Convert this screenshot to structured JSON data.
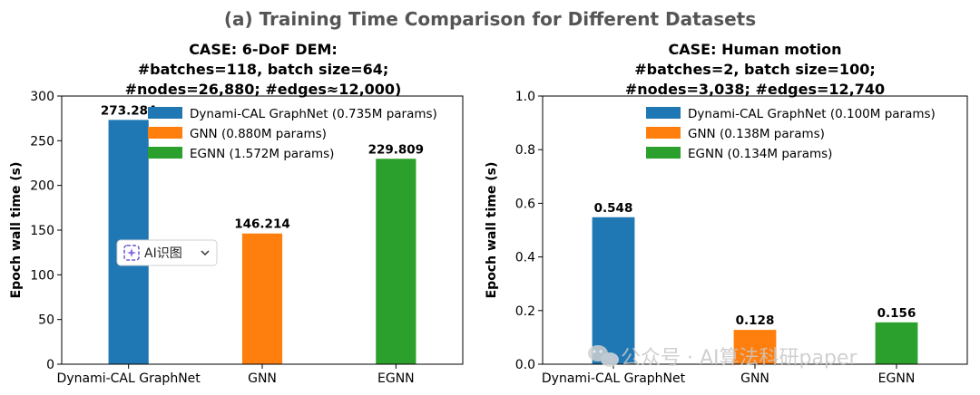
{
  "figure": {
    "title": "(a) Training Time Comparison for Different Datasets"
  },
  "colors": {
    "blue": "#1f77b4",
    "orange": "#ff7f0e",
    "green": "#2ca02c"
  },
  "chart_data": [
    {
      "type": "bar",
      "title_lines": [
        "CASE: 6-DoF DEM:",
        "#batches=118, batch size=64;",
        "#nodes=26,880; #edges≈12,000)"
      ],
      "categories": [
        "Dynami-CAL GraphNet",
        "GNN",
        "EGNN"
      ],
      "values": [
        273.284,
        146.214,
        229.809
      ],
      "value_labels": [
        "273.284",
        "146.214",
        "229.809"
      ],
      "ylabel": "Epoch wall time (s)",
      "ylim": [
        0,
        300
      ],
      "yticks": [
        0,
        50,
        100,
        150,
        200,
        250,
        300
      ],
      "ytick_labels": [
        "0",
        "50",
        "100",
        "150",
        "200",
        "250",
        "300"
      ],
      "legend": [
        "Dynami-CAL GraphNet (0.735M params)",
        "GNN (0.880M params)",
        "EGNN (1.572M params)"
      ],
      "legend_position": "top-right",
      "grid": false
    },
    {
      "type": "bar",
      "title_lines": [
        "CASE: Human motion",
        "#batches=2, batch size=100;",
        "#nodes=3,038; #edges=12,740"
      ],
      "categories": [
        "Dynami-CAL GraphNet",
        "GNN",
        "EGNN"
      ],
      "values": [
        0.548,
        0.128,
        0.156
      ],
      "value_labels": [
        "0.548",
        "0.128",
        "0.156"
      ],
      "ylabel": "Epoch wall time (s)",
      "ylim": [
        0,
        1.0
      ],
      "yticks": [
        0,
        0.2,
        0.4,
        0.6,
        0.8,
        1.0
      ],
      "ytick_labels": [
        "0.0",
        "0.2",
        "0.4",
        "0.6",
        "0.8",
        "1.0"
      ],
      "legend": [
        "Dynami-CAL GraphNet (0.100M params)",
        "GNN (0.138M params)",
        "EGNN (0.134M params)"
      ],
      "legend_position": "top-right",
      "grid": false
    }
  ],
  "overlay": {
    "ai_button_label": "AI识图",
    "ai_icon": "sparkle-icon",
    "chevron_icon": "chevron-down-icon"
  },
  "watermark": {
    "text": "公众号 · AI算法科研paper",
    "icon": "wechat-icon"
  }
}
